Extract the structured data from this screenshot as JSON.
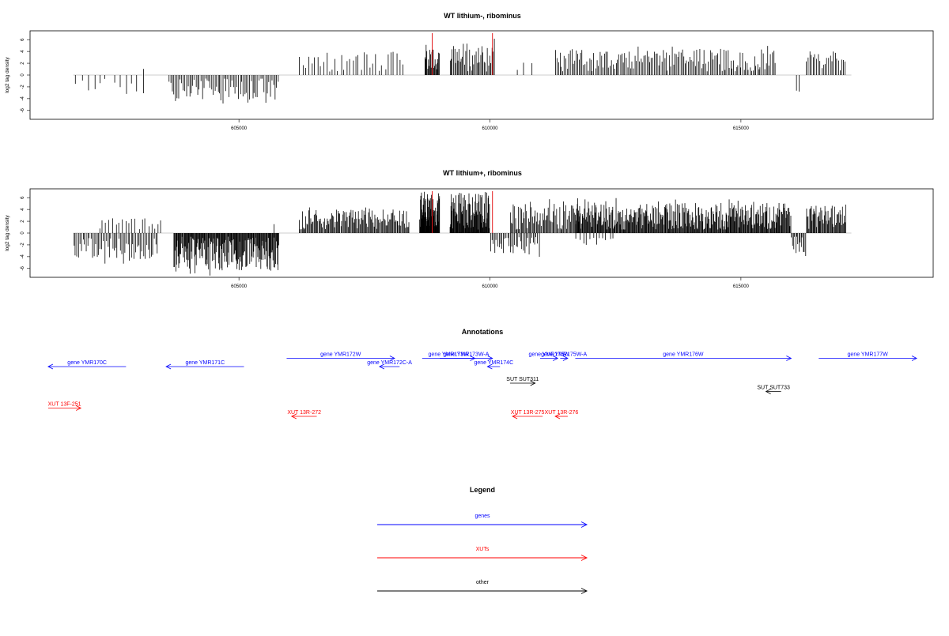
{
  "chart_data": [
    {
      "type": "bar",
      "title": "WT lithium-, ribominus",
      "ylabel": "log2 tag density",
      "ylim": [
        -7.5,
        7.5
      ],
      "yticks": [
        -6,
        -4,
        -2,
        0,
        2,
        4,
        6
      ],
      "xlim": [
        601500,
        618200
      ],
      "xticks": [
        605000,
        610000,
        615000
      ],
      "xticklabels": [
        "605000",
        "610000",
        "615000"
      ],
      "markers": [
        608850,
        610050
      ],
      "marker_color": "#e41a1c",
      "bar_color": "#000000",
      "segments": [
        {
          "x0": 601700,
          "x1": 603200,
          "n": 12,
          "sign": -1,
          "amp": 3.2,
          "seed": 1
        },
        {
          "x0": 603600,
          "x1": 605800,
          "n": 70,
          "sign": -1,
          "amp": 4.4,
          "seed": 2
        },
        {
          "x0": 603100,
          "x1": 603150,
          "n": 1,
          "sign": 1,
          "amp": 2.6,
          "seed": 3
        },
        {
          "x0": 606200,
          "x1": 608300,
          "n": 36,
          "sign": 1,
          "amp": 4.0,
          "seed": 4
        },
        {
          "x0": 608700,
          "x1": 609000,
          "n": 22,
          "sign": 1,
          "amp": 5.2,
          "seed": 5
        },
        {
          "x0": 609200,
          "x1": 610100,
          "n": 40,
          "sign": 1,
          "amp": 5.4,
          "seed": 6
        },
        {
          "x0": 610500,
          "x1": 610900,
          "n": 3,
          "sign": 1,
          "amp": 3.0,
          "seed": 7
        },
        {
          "x0": 611300,
          "x1": 615700,
          "n": 150,
          "sign": 1,
          "amp": 4.6,
          "seed": 8
        },
        {
          "x0": 616100,
          "x1": 616200,
          "n": 2,
          "sign": -1,
          "amp": 3.5,
          "seed": 9
        },
        {
          "x0": 616300,
          "x1": 617100,
          "n": 24,
          "sign": 1,
          "amp": 4.0,
          "seed": 10
        }
      ]
    },
    {
      "type": "bar",
      "title": "WT lithium+, ribominus",
      "ylabel": "log2 tag density",
      "ylim": [
        -7.5,
        7.5
      ],
      "yticks": [
        -6,
        -4,
        -2,
        0,
        2,
        4,
        6
      ],
      "xlim": [
        601500,
        618200
      ],
      "xticks": [
        605000,
        610000,
        615000
      ],
      "xticklabels": [
        "605000",
        "610000",
        "615000"
      ],
      "markers": [
        608850,
        610050
      ],
      "marker_color": "#e41a1c",
      "bar_color": "#000000",
      "segments": [
        {
          "x0": 601700,
          "x1": 603400,
          "n": 55,
          "sign": -1,
          "amp": 4.8,
          "seed": 11
        },
        {
          "x0": 602200,
          "x1": 603500,
          "n": 20,
          "sign": 1,
          "amp": 2.5,
          "seed": 12
        },
        {
          "x0": 603700,
          "x1": 605800,
          "n": 170,
          "sign": -1,
          "amp": 6.4,
          "seed": 13
        },
        {
          "x0": 605700,
          "x1": 605750,
          "n": 1,
          "sign": 1,
          "amp": 2.8,
          "seed": 14
        },
        {
          "x0": 606200,
          "x1": 608400,
          "n": 120,
          "sign": 1,
          "amp": 4.0,
          "seed": 15
        },
        {
          "x0": 608600,
          "x1": 609000,
          "n": 60,
          "sign": 1,
          "amp": 6.8,
          "seed": 16
        },
        {
          "x0": 609200,
          "x1": 610000,
          "n": 80,
          "sign": 1,
          "amp": 7.0,
          "seed": 17
        },
        {
          "x0": 610000,
          "x1": 611000,
          "n": 35,
          "sign": -1,
          "amp": 3.5,
          "seed": 18
        },
        {
          "x0": 610400,
          "x1": 611800,
          "n": 70,
          "sign": 1,
          "amp": 5.0,
          "seed": 19
        },
        {
          "x0": 611700,
          "x1": 616000,
          "n": 320,
          "sign": 1,
          "amp": 5.2,
          "seed": 20
        },
        {
          "x0": 611700,
          "x1": 612500,
          "n": 12,
          "sign": -1,
          "amp": 2.0,
          "seed": 21
        },
        {
          "x0": 616000,
          "x1": 616300,
          "n": 14,
          "sign": -1,
          "amp": 3.4,
          "seed": 22
        },
        {
          "x0": 616300,
          "x1": 617100,
          "n": 50,
          "sign": 1,
          "amp": 4.8,
          "seed": 23
        }
      ]
    }
  ],
  "annotations": {
    "title": "Annotations",
    "xlim": [
      601500,
      618200
    ],
    "items": [
      {
        "label": "gene YMR170C",
        "x0": 601200,
        "x1": 602750,
        "track": 2,
        "strand": -1,
        "color": "#0000ff"
      },
      {
        "label": "gene YMR171C",
        "x0": 603550,
        "x1": 605100,
        "track": 2,
        "strand": -1,
        "color": "#0000ff"
      },
      {
        "label": "gene YMR172W",
        "x0": 605950,
        "x1": 608100,
        "track": 1,
        "strand": 1,
        "color": "#0000ff"
      },
      {
        "label": "gene YMR172C-A",
        "x0": 607800,
        "x1": 608200,
        "track": 2,
        "strand": -1,
        "color": "#0000ff"
      },
      {
        "label": "gene YMR173W",
        "x0": 608650,
        "x1": 609700,
        "track": 1,
        "strand": 1,
        "color": "#0000ff"
      },
      {
        "label": "gene YMR173W-A",
        "x0": 609000,
        "x1": 610050,
        "track": 1,
        "strand": 1,
        "color": "#0000ff"
      },
      {
        "label": "gene YMR174C",
        "x0": 609950,
        "x1": 610200,
        "track": 2,
        "strand": -1,
        "color": "#0000ff"
      },
      {
        "label": "gene YMR175W",
        "x0": 611000,
        "x1": 611350,
        "track": 1,
        "strand": 1,
        "color": "#0000ff"
      },
      {
        "label": "gene YMR175W-A",
        "x0": 611400,
        "x1": 611550,
        "track": 1,
        "strand": 1,
        "color": "#0000ff"
      },
      {
        "label": "gene YMR176W",
        "x0": 611700,
        "x1": 616000,
        "track": 1,
        "strand": 1,
        "color": "#0000ff"
      },
      {
        "label": "gene YMR177W",
        "x0": 616550,
        "x1": 618500,
        "track": 1,
        "strand": 1,
        "color": "#0000ff"
      },
      {
        "label": "SUT SUT311",
        "x0": 610400,
        "x1": 610900,
        "track": 4,
        "strand": 1,
        "color": "#000000"
      },
      {
        "label": "SUT SUT733",
        "x0": 615500,
        "x1": 615800,
        "track": 5,
        "strand": -1,
        "color": "#000000"
      },
      {
        "label": "XUT 13F-251",
        "x0": 601200,
        "x1": 601850,
        "track": 7,
        "strand": 1,
        "color": "#ff0000"
      },
      {
        "label": "XUT 13R-272",
        "x0": 606050,
        "x1": 606550,
        "track": 8,
        "strand": -1,
        "color": "#ff0000"
      },
      {
        "label": "XUT 13R-275",
        "x0": 610450,
        "x1": 611050,
        "track": 8,
        "strand": -1,
        "color": "#ff0000"
      },
      {
        "label": "XUT 13R-276",
        "x0": 611300,
        "x1": 611550,
        "track": 8,
        "strand": -1,
        "color": "#ff0000"
      }
    ]
  },
  "legend": {
    "title": "Legend",
    "items": [
      {
        "label": "genes",
        "color": "#0000ff"
      },
      {
        "label": "XUTs",
        "color": "#ff0000"
      },
      {
        "label": "other",
        "color": "#000000"
      }
    ]
  }
}
